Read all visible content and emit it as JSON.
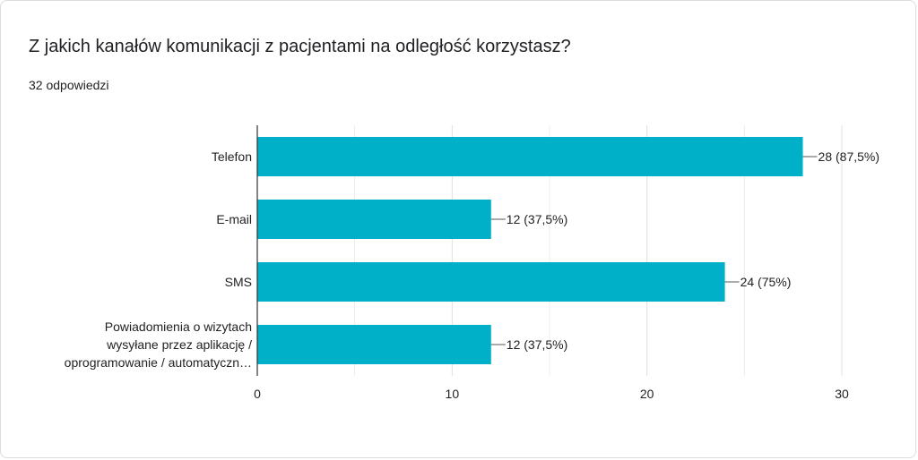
{
  "form": {
    "question": "Z jakich kanałów komunikacji z pacjentami na odległość korzystasz?",
    "response_count": "32 odpowiedzi"
  },
  "colors": {
    "bar": "#00b0c8",
    "grid": "#e0e0e0",
    "axis": "#333333"
  },
  "chart_data": {
    "type": "bar",
    "orientation": "horizontal",
    "categories": [
      [
        "Telefon"
      ],
      [
        "E-mail"
      ],
      [
        "SMS"
      ],
      [
        "Powiadomienia o wizytach",
        "wysyłane przez aplikację /",
        "oprogramowanie / automatyczn…"
      ]
    ],
    "values": [
      28,
      12,
      24,
      12
    ],
    "data_labels": [
      "28 (87,5%)",
      "12 (37,5%)",
      "24 (75%)",
      "12 (37,5%)"
    ],
    "xlim": [
      0,
      30
    ],
    "xticks": [
      0,
      10,
      20,
      30
    ],
    "grid": true
  }
}
